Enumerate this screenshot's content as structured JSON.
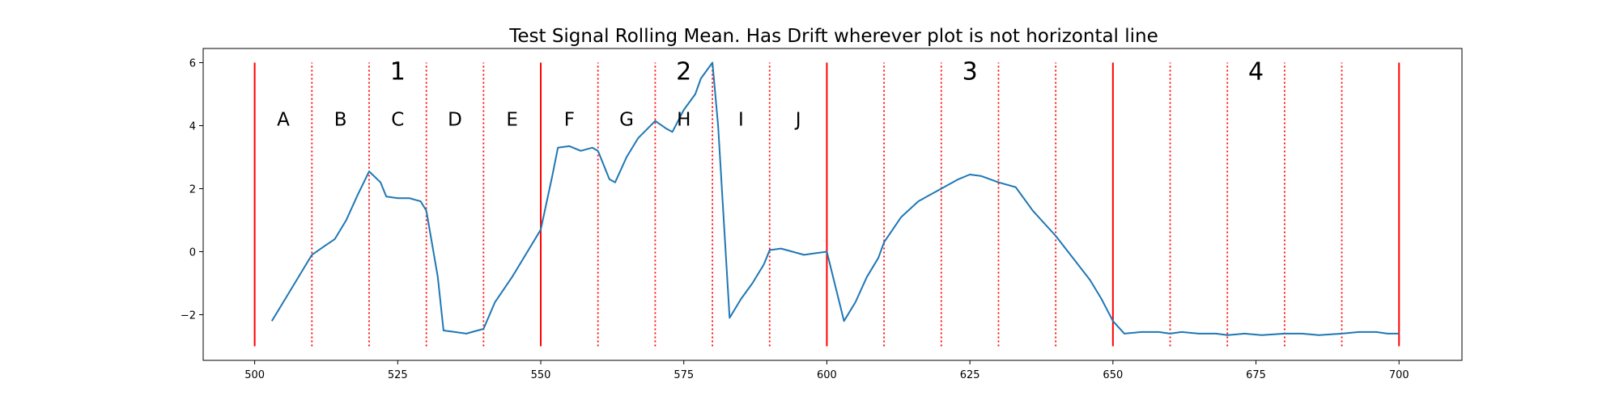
{
  "chart_data": {
    "type": "line",
    "title": "Test Signal Rolling Mean. Has Drift wherever plot is not horizontal line",
    "xlabel": "",
    "ylabel": "",
    "xlim": [
      491,
      711
    ],
    "ylim": [
      -3.45,
      6.45
    ],
    "xticks": [
      500,
      525,
      550,
      575,
      600,
      625,
      650,
      675,
      700
    ],
    "yticks": [
      -2,
      0,
      2,
      4,
      6
    ],
    "ytick_labels": [
      "−2",
      "0",
      "2",
      "4",
      "6"
    ],
    "grid": false,
    "series": [
      {
        "name": "rolling mean",
        "color": "#1f77b4",
        "points": [
          [
            503,
            -2.2
          ],
          [
            505,
            -1.6
          ],
          [
            507,
            -1.0
          ],
          [
            510,
            -0.1
          ],
          [
            512,
            0.15
          ],
          [
            514,
            0.4
          ],
          [
            516,
            1.0
          ],
          [
            518,
            1.8
          ],
          [
            520,
            2.55
          ],
          [
            522,
            2.2
          ],
          [
            523,
            1.75
          ],
          [
            525,
            1.7
          ],
          [
            527,
            1.7
          ],
          [
            528,
            1.65
          ],
          [
            529,
            1.6
          ],
          [
            530,
            1.3
          ],
          [
            532,
            -0.8
          ],
          [
            533,
            -2.5
          ],
          [
            535,
            -2.55
          ],
          [
            537,
            -2.6
          ],
          [
            538,
            -2.55
          ],
          [
            540,
            -2.45
          ],
          [
            542,
            -1.6
          ],
          [
            545,
            -0.8
          ],
          [
            548,
            0.1
          ],
          [
            550,
            0.7
          ],
          [
            552,
            2.4
          ],
          [
            553,
            3.3
          ],
          [
            555,
            3.35
          ],
          [
            557,
            3.2
          ],
          [
            559,
            3.3
          ],
          [
            560,
            3.2
          ],
          [
            562,
            2.3
          ],
          [
            563,
            2.2
          ],
          [
            565,
            3.0
          ],
          [
            567,
            3.6
          ],
          [
            570,
            4.15
          ],
          [
            572,
            3.9
          ],
          [
            573,
            3.8
          ],
          [
            575,
            4.5
          ],
          [
            577,
            5.0
          ],
          [
            578,
            5.5
          ],
          [
            580,
            6.0
          ],
          [
            581,
            4.0
          ],
          [
            583,
            -2.1
          ],
          [
            585,
            -1.5
          ],
          [
            587,
            -1.0
          ],
          [
            589,
            -0.4
          ],
          [
            590,
            0.05
          ],
          [
            592,
            0.1
          ],
          [
            594,
            0.0
          ],
          [
            596,
            -0.1
          ],
          [
            598,
            -0.05
          ],
          [
            600,
            0.0
          ],
          [
            603,
            -2.2
          ],
          [
            605,
            -1.6
          ],
          [
            607,
            -0.8
          ],
          [
            609,
            -0.2
          ],
          [
            610,
            0.3
          ],
          [
            613,
            1.1
          ],
          [
            616,
            1.6
          ],
          [
            620,
            2.0
          ],
          [
            623,
            2.3
          ],
          [
            625,
            2.45
          ],
          [
            627,
            2.4
          ],
          [
            630,
            2.2
          ],
          [
            633,
            2.05
          ],
          [
            636,
            1.3
          ],
          [
            640,
            0.5
          ],
          [
            643,
            -0.2
          ],
          [
            646,
            -0.9
          ],
          [
            648,
            -1.5
          ],
          [
            650,
            -2.2
          ],
          [
            652,
            -2.6
          ],
          [
            655,
            -2.55
          ],
          [
            658,
            -2.55
          ],
          [
            660,
            -2.6
          ],
          [
            662,
            -2.55
          ],
          [
            665,
            -2.6
          ],
          [
            668,
            -2.6
          ],
          [
            670,
            -2.65
          ],
          [
            673,
            -2.6
          ],
          [
            676,
            -2.65
          ],
          [
            680,
            -2.6
          ],
          [
            683,
            -2.6
          ],
          [
            686,
            -2.65
          ],
          [
            690,
            -2.6
          ],
          [
            693,
            -2.55
          ],
          [
            696,
            -2.55
          ],
          [
            698,
            -2.6
          ],
          [
            700,
            -2.6
          ]
        ]
      }
    ],
    "solid_boundaries": [
      500,
      550,
      600,
      650,
      700
    ],
    "dotted_boundaries": [
      510,
      520,
      530,
      540,
      560,
      570,
      580,
      590,
      610,
      620,
      630,
      640,
      660,
      670,
      680,
      690
    ],
    "boundary_color": "#ff0000",
    "boundary_ymin": -3.0,
    "boundary_ymax": 6.0,
    "segment_labels": [
      {
        "text": "1",
        "x": 525,
        "y": 5.75
      },
      {
        "text": "2",
        "x": 575,
        "y": 5.75
      },
      {
        "text": "3",
        "x": 625,
        "y": 5.75
      },
      {
        "text": "4",
        "x": 675,
        "y": 5.75
      }
    ],
    "section_labels": [
      {
        "text": "A",
        "x": 505,
        "y": 4.2
      },
      {
        "text": "B",
        "x": 515,
        "y": 4.2
      },
      {
        "text": "C",
        "x": 525,
        "y": 4.2
      },
      {
        "text": "D",
        "x": 535,
        "y": 4.2
      },
      {
        "text": "E",
        "x": 545,
        "y": 4.2
      },
      {
        "text": "F",
        "x": 555,
        "y": 4.2
      },
      {
        "text": "G",
        "x": 565,
        "y": 4.2
      },
      {
        "text": "H",
        "x": 575,
        "y": 4.2
      },
      {
        "text": "I",
        "x": 585,
        "y": 4.2
      },
      {
        "text": "J",
        "x": 595,
        "y": 4.2
      }
    ]
  }
}
